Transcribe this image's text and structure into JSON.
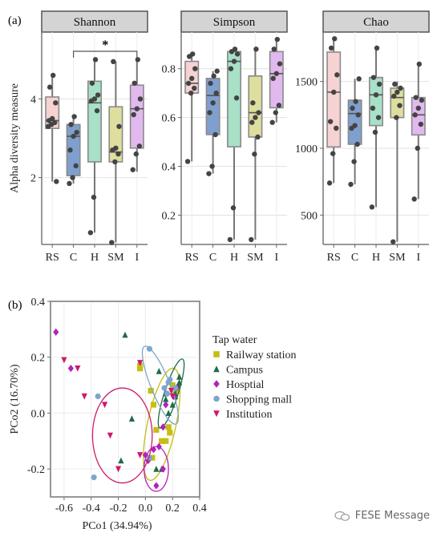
{
  "panel_a_label": "(a)",
  "panel_b_label": "(b)",
  "watermark": "FESE Message",
  "chart_data": [
    {
      "type": "box",
      "title": "Shannon",
      "ylabel": "Alpha diversity measure",
      "categories": [
        "RS",
        "C",
        "H",
        "SM",
        "I"
      ],
      "colors": [
        "#f6d2d2",
        "#7f9fcf",
        "#a8e0c8",
        "#dede9e",
        "#e2b9ef"
      ],
      "yticks": [
        2,
        4
      ],
      "ylim": [
        0.3,
        5.7
      ],
      "significance": {
        "from": "C",
        "to": "I",
        "label": "*"
      },
      "boxes": [
        {
          "min": 1.9,
          "q1": 3.25,
          "median": 3.45,
          "q3": 4.05,
          "max": 4.6,
          "points": [
            3.3,
            3.35,
            3.4,
            3.45,
            3.5,
            3.9,
            4.3,
            4.6,
            1.9
          ]
        },
        {
          "min": 1.85,
          "q1": 2.05,
          "median": 3.05,
          "q3": 3.35,
          "max": 3.55,
          "points": [
            1.85,
            2.0,
            2.3,
            2.7,
            3.05,
            3.15,
            3.35,
            3.55
          ]
        },
        {
          "min": 0.6,
          "q1": 2.4,
          "median": 3.9,
          "q3": 4.45,
          "max": 5.0,
          "points": [
            0.6,
            1.5,
            3.7,
            3.95,
            4.0,
            4.1,
            4.4,
            5.0
          ]
        },
        {
          "min": 0.35,
          "q1": 2.4,
          "median": 2.65,
          "q3": 3.8,
          "max": 4.95,
          "points": [
            0.35,
            2.4,
            2.6,
            2.7,
            2.75,
            3.3,
            4.95
          ]
        },
        {
          "min": 2.15,
          "q1": 2.75,
          "median": 3.75,
          "q3": 4.35,
          "max": 5.0,
          "points": [
            2.2,
            2.6,
            2.8,
            3.6,
            3.75,
            4.0,
            4.4,
            5.0
          ]
        }
      ]
    },
    {
      "type": "box",
      "title": "Simpson",
      "ylabel": "",
      "categories": [
        "RS",
        "C",
        "H",
        "SM",
        "I"
      ],
      "colors": [
        "#f6d2d2",
        "#7f9fcf",
        "#a8e0c8",
        "#dede9e",
        "#e2b9ef"
      ],
      "yticks": [
        0.2,
        0.4,
        0.6,
        0.8
      ],
      "ylim": [
        0.08,
        0.95
      ],
      "boxes": [
        {
          "min": 0.42,
          "q1": 0.7,
          "median": 0.74,
          "q3": 0.83,
          "max": 0.86,
          "points": [
            0.42,
            0.7,
            0.72,
            0.74,
            0.76,
            0.8,
            0.85,
            0.86
          ]
        },
        {
          "min": 0.37,
          "q1": 0.53,
          "median": 0.69,
          "q3": 0.76,
          "max": 0.79,
          "points": [
            0.37,
            0.4,
            0.53,
            0.62,
            0.66,
            0.7,
            0.74,
            0.77,
            0.79
          ]
        },
        {
          "min": 0.1,
          "q1": 0.48,
          "median": 0.83,
          "q3": 0.87,
          "max": 0.88,
          "points": [
            0.1,
            0.23,
            0.68,
            0.8,
            0.83,
            0.86,
            0.87,
            0.88
          ]
        },
        {
          "min": 0.1,
          "q1": 0.52,
          "median": 0.62,
          "q3": 0.77,
          "max": 0.88,
          "points": [
            0.1,
            0.45,
            0.52,
            0.58,
            0.6,
            0.62,
            0.66,
            0.88
          ]
        },
        {
          "min": 0.58,
          "q1": 0.64,
          "median": 0.78,
          "q3": 0.87,
          "max": 0.92,
          "points": [
            0.58,
            0.62,
            0.65,
            0.76,
            0.78,
            0.82,
            0.88,
            0.92
          ]
        }
      ]
    },
    {
      "type": "box",
      "title": "Chao",
      "ylabel": "",
      "categories": [
        "RS",
        "C",
        "H",
        "SM",
        "I"
      ],
      "colors": [
        "#f6d2d2",
        "#7f9fcf",
        "#a8e0c8",
        "#dede9e",
        "#e2b9ef"
      ],
      "yticks": [
        500,
        1000,
        1500
      ],
      "ylim": [
        280,
        1870
      ],
      "boxes": [
        {
          "min": 740,
          "q1": 1010,
          "median": 1420,
          "q3": 1720,
          "max": 1820,
          "points": [
            740,
            960,
            1150,
            1200,
            1420,
            1550,
            1750,
            1820
          ]
        },
        {
          "min": 730,
          "q1": 1030,
          "median": 1260,
          "q3": 1360,
          "max": 1520,
          "points": [
            730,
            900,
            1030,
            1150,
            1170,
            1250,
            1300,
            1350,
            1520
          ]
        },
        {
          "min": 560,
          "q1": 1170,
          "median": 1400,
          "q3": 1530,
          "max": 1750,
          "points": [
            560,
            1120,
            1230,
            1300,
            1400,
            1480,
            1530,
            1750
          ]
        },
        {
          "min": 300,
          "q1": 1230,
          "median": 1380,
          "q3": 1450,
          "max": 1500,
          "points": [
            300,
            1230,
            1320,
            1390,
            1420,
            1450,
            1480
          ]
        },
        {
          "min": 620,
          "q1": 1100,
          "median": 1250,
          "q3": 1380,
          "max": 1630,
          "points": [
            620,
            1000,
            1180,
            1250,
            1300,
            1360,
            1380,
            1630
          ]
        }
      ]
    },
    {
      "type": "scatter",
      "xlabel": "PCo1 (34.94%)",
      "ylabel": "PCo2 (16.70%)",
      "xlim": [
        -0.7,
        0.4
      ],
      "ylim": [
        -0.3,
        0.4
      ],
      "xticks": [
        -0.6,
        -0.4,
        -0.2,
        0.0,
        0.2,
        0.4
      ],
      "xtick_labels": [
        "-0.6",
        "-0.4",
        "-0.2",
        "0.0",
        "0.2",
        "0.4"
      ],
      "yticks": [
        -0.2,
        0.0,
        0.2,
        0.4
      ],
      "ytick_labels": [
        "-0.2",
        "0.0",
        "0.2",
        "0.4"
      ],
      "legend_title": "Tap water",
      "legend_position": "right",
      "series": [
        {
          "name": "Railway station",
          "color": "#c8bd14",
          "marker": "square",
          "ellipse": {
            "cx": 0.12,
            "cy": -0.04,
            "rx": 0.105,
            "ry": 0.205,
            "angle": 12
          },
          "x": [
            -0.04,
            0.04,
            0.06,
            0.08,
            0.12,
            0.15,
            0.17,
            0.18,
            0.2,
            0.21,
            0.23,
            0.05,
            -0.04
          ],
          "y": [
            0.16,
            0.08,
            0.03,
            -0.06,
            -0.1,
            -0.1,
            -0.05,
            -0.07,
            0.1,
            0.07,
            0.08,
            -0.16,
            0.17
          ]
        },
        {
          "name": "Campus",
          "color": "#1d6b4a",
          "marker": "triangle-up",
          "ellipse": {
            "cx": 0.19,
            "cy": 0.07,
            "rx": 0.05,
            "ry": 0.13,
            "angle": 18
          },
          "x": [
            -0.15,
            -0.1,
            0.1,
            0.15,
            0.15,
            0.17,
            0.2,
            0.22,
            0.22,
            0.24,
            0.25,
            0.25,
            0.08,
            0.12,
            -0.18
          ],
          "y": [
            0.28,
            -0.02,
            0.15,
            0.07,
            0.05,
            0.0,
            0.03,
            0.07,
            0.06,
            0.1,
            0.11,
            0.13,
            -0.2,
            -0.2,
            -0.17
          ]
        },
        {
          "name": "Hosptial",
          "color": "#b122bb",
          "marker": "diamond",
          "ellipse": {
            "cx": 0.08,
            "cy": -0.2,
            "rx": 0.09,
            "ry": 0.08,
            "angle": 0
          },
          "x": [
            -0.66,
            -0.55,
            0.15,
            0.13,
            0.1,
            0.06,
            0.0,
            0.02,
            0.13,
            0.08,
            0.21,
            0.23
          ],
          "y": [
            0.29,
            0.16,
            0.03,
            -0.05,
            -0.12,
            -0.13,
            -0.15,
            -0.17,
            -0.2,
            -0.26,
            0.06,
            0.09
          ]
        },
        {
          "name": "Shopping mall",
          "color": "#7ea6cc",
          "marker": "circle",
          "ellipse": {
            "cx": 0.11,
            "cy": 0.1,
            "rx": 0.07,
            "ry": 0.15,
            "angle": -22
          },
          "x": [
            0.03,
            -0.35,
            0.14,
            0.18,
            0.16,
            0.17,
            0.22,
            0.03,
            -0.38
          ],
          "y": [
            0.23,
            0.06,
            0.09,
            0.12,
            0.07,
            0.11,
            0.09,
            -0.16,
            -0.23
          ]
        },
        {
          "name": "Institution",
          "color": "#cc1a6a",
          "marker": "triangle-down",
          "ellipse": {
            "cx": -0.17,
            "cy": -0.08,
            "rx": 0.22,
            "ry": 0.17,
            "angle": 0
          },
          "x": [
            -0.6,
            -0.5,
            -0.45,
            -0.3,
            -0.26,
            -0.2,
            -0.04,
            -0.04,
            0.19,
            0.2
          ],
          "y": [
            0.19,
            0.16,
            0.06,
            0.03,
            -0.08,
            -0.2,
            0.18,
            -0.15,
            0.08,
            0.06
          ]
        }
      ]
    }
  ]
}
